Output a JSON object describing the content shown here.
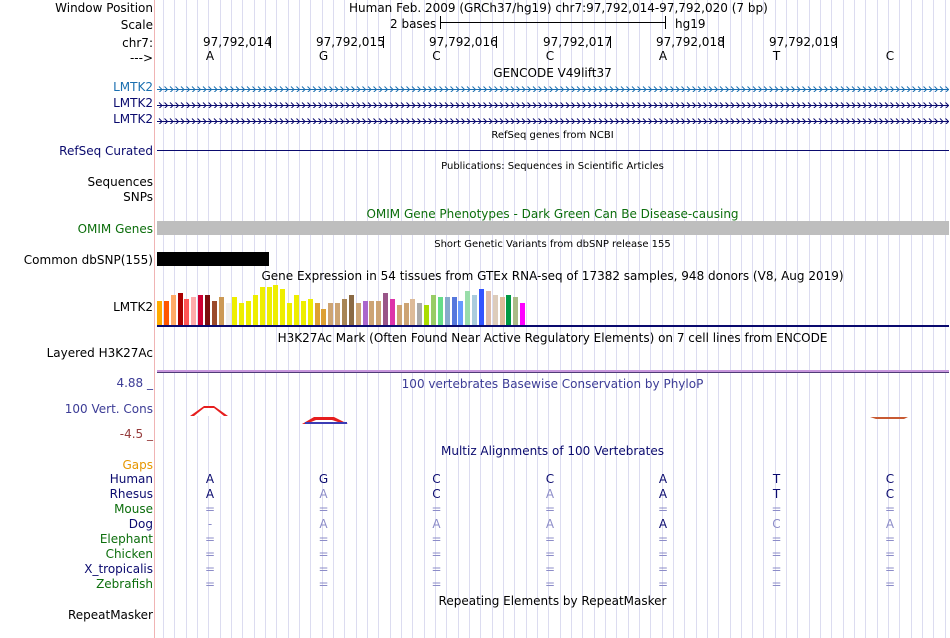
{
  "header": {
    "window_position_label": "Window Position",
    "window_position_value": "Human Feb. 2009 (GRCh37/hg19)   chr7:97,792,014-97,792,020 (7 bp)",
    "scale_label": "Scale",
    "scale_text": "2 bases",
    "scale_assembly": "hg19",
    "chrom_label": "chr7:",
    "strand_label": "--->",
    "positions": [
      "97,792,014",
      "97,792,015",
      "97,792,016",
      "97,792,017",
      "97,792,018",
      "97,792,019"
    ],
    "bases": [
      "A",
      "G",
      "C",
      "C",
      "A",
      "T",
      "C"
    ]
  },
  "gencode": {
    "title": "GENCODE V49lift37",
    "rows": [
      "LMTK2",
      "LMTK2",
      "LMTK2"
    ]
  },
  "refseq": {
    "title": "RefSeq genes from NCBI",
    "label": "RefSeq Curated"
  },
  "publications": {
    "title": "Publications: Sequences in Scientific Articles",
    "labels": [
      "Sequences",
      "SNPs"
    ]
  },
  "omim": {
    "title": "OMIM Gene Phenotypes - Dark Green Can Be Disease-causing",
    "label": "OMIM Genes"
  },
  "dbsnp": {
    "title": "Short Genetic Variants from dbSNP release 155",
    "label": "Common dbSNP(155)"
  },
  "gtex": {
    "title": "Gene Expression in 54 tissues from GTEx RNA-seq of 17382 samples, 948 donors (V8, Aug 2019)",
    "label": "LMTK2",
    "tissue_levels": [
      0.6,
      0.6,
      0.75,
      0.8,
      0.65,
      0.7,
      0.75,
      0.75,
      0.6,
      0.7,
      0.55,
      0.7,
      0.55,
      0.6,
      0.75,
      0.95,
      0.95,
      1.0,
      0.9,
      0.55,
      0.75,
      0.6,
      0.65,
      0.55,
      0.4,
      0.55,
      0.55,
      0.65,
      0.75,
      0.55,
      0.6,
      0.6,
      0.6,
      0.8,
      0.65,
      0.5,
      0.55,
      0.65,
      0.55,
      0.5,
      0.75,
      0.7,
      0.7,
      0.7,
      0.6,
      0.85,
      0.75,
      0.9,
      0.85,
      0.75,
      0.7,
      0.75,
      0.7,
      0.55
    ]
  },
  "h3k27ac": {
    "title": "H3K27Ac Mark (Often Found Near Active Regulatory Elements) on 7 cell lines from ENCODE",
    "label": "Layered H3K27Ac"
  },
  "phylop": {
    "title": "100 vertebrates Basewise Conservation by PhyloP",
    "label": "100 Vert. Cons",
    "max": "4.88 _",
    "min": "-4.5 _"
  },
  "multiz": {
    "title": "Multiz Alignments of 100 Vertebrates",
    "gaps_label": "Gaps",
    "species": [
      {
        "name": "Human",
        "bases": [
          "A",
          "G",
          "C",
          "C",
          "A",
          "T",
          "C"
        ]
      },
      {
        "name": "Rhesus",
        "bases": [
          "A",
          "A",
          "C",
          "A",
          "A",
          "T",
          "C"
        ]
      },
      {
        "name": "Mouse",
        "bases": [
          "=",
          "=",
          "=",
          "=",
          "=",
          "=",
          "="
        ]
      },
      {
        "name": "Dog",
        "bases": [
          "-",
          "A",
          "A",
          "A",
          "A",
          "C",
          "A"
        ]
      },
      {
        "name": "Elephant",
        "bases": [
          "=",
          "=",
          "=",
          "=",
          "=",
          "=",
          "="
        ]
      },
      {
        "name": "Chicken",
        "bases": [
          "=",
          "=",
          "=",
          "=",
          "=",
          "=",
          "="
        ]
      },
      {
        "name": "X_tropicalis",
        "bases": [
          "=",
          "=",
          "=",
          "=",
          "=",
          "=",
          "="
        ]
      },
      {
        "name": "Zebrafish",
        "bases": [
          "=",
          "=",
          "=",
          "=",
          "=",
          "=",
          "="
        ]
      }
    ]
  },
  "repeatmasker": {
    "title": "Repeating Elements by RepeatMasker",
    "label": "RepeatMasker"
  },
  "colors": {
    "gencode_blue": "#1a6fb0",
    "navy": "#0a0a6e",
    "omim_green": "#0c6e0c",
    "phylop_title": "#3c3c96",
    "phylop_max": "#3c3c96",
    "phylop_min": "#963c3c",
    "gaps": "#e69600"
  }
}
